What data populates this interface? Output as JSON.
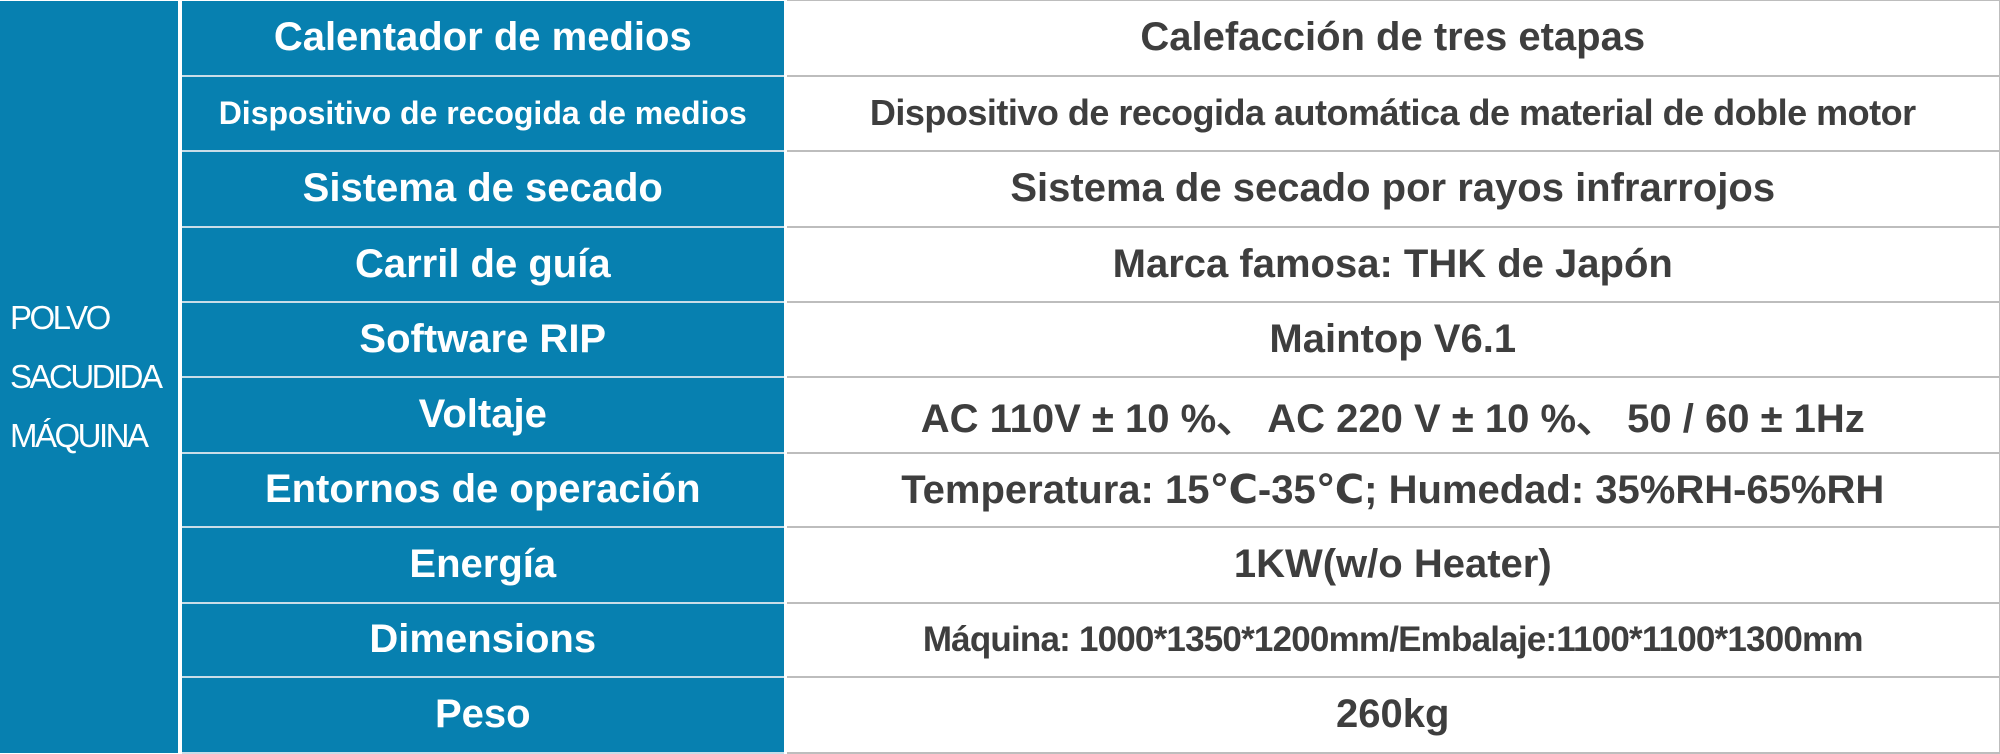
{
  "category_label": [
    "POLVO",
    "SACUDIDA",
    "MÁQUINA"
  ],
  "rows": [
    {
      "key": "Calentador de medios",
      "value": "Calefacción de tres etapas"
    },
    {
      "key": "Dispositivo de recogida de medios",
      "value": "Dispositivo de recogida automática de material de doble motor"
    },
    {
      "key": "Sistema de secado",
      "value": "Sistema de secado por rayos infrarrojos"
    },
    {
      "key": "Carril de guía",
      "value": "Marca famosa: THK de Japón"
    },
    {
      "key": "Software RIP",
      "value": "Maintop V6.1"
    },
    {
      "key": "Voltaje",
      "value": "AC 110V ± 10 %、 AC 220 V ± 10 %、 50 / 60 ± 1Hz"
    },
    {
      "key": "Entornos de operación",
      "value": "Temperatura: 15℃-35℃; Humedad: 35%RH-65%RH"
    },
    {
      "key": "Energía",
      "value": "1KW(w/o Heater)"
    },
    {
      "key": "Dimensions",
      "value": "Máquina: 1000*1350*1200mm/Embalaje:1100*1100*1300mm"
    },
    {
      "key": "Peso",
      "value": "260kg"
    }
  ]
}
